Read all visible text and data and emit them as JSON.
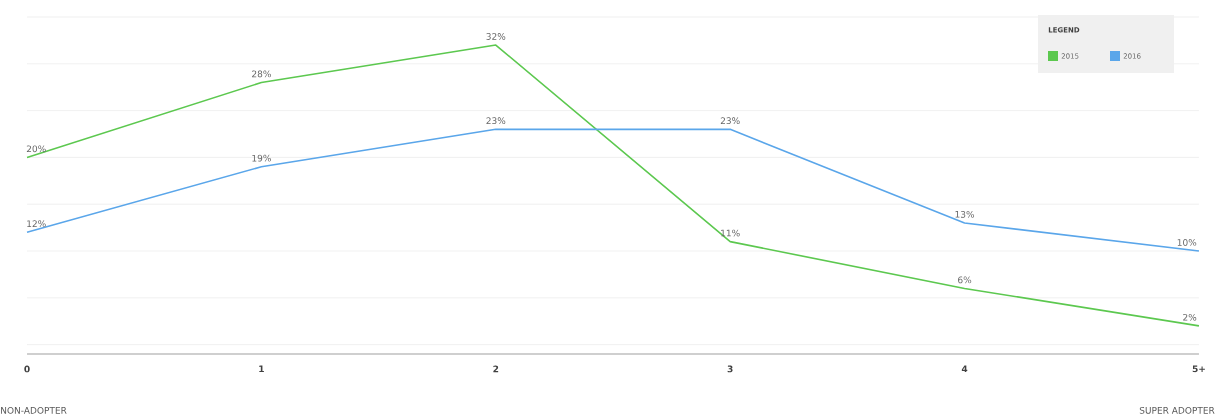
{
  "chart_data": {
    "type": "line",
    "categories": [
      "0",
      "1",
      "2",
      "3",
      "4",
      "5+"
    ],
    "series": [
      {
        "name": "2015",
        "color": "#5cc84f",
        "values": [
          20,
          28,
          32,
          11,
          6,
          2
        ],
        "value_labels": [
          "20%",
          "28%",
          "32%",
          "11%",
          "6%",
          "2%"
        ]
      },
      {
        "name": "2016",
        "color": "#5aa6ea",
        "values": [
          12,
          19,
          23,
          23,
          13,
          10
        ],
        "value_labels": [
          "12%",
          "19%",
          "23%",
          "23%",
          "13%",
          "10%"
        ]
      }
    ],
    "tick_labels": "x",
    "grid": "y",
    "legend": "top right",
    "legend_title": "LEGEND",
    "marker": "none",
    "line_style": "solid",
    "annotations": [
      "NON-ADOPTER",
      "SUPER ADOPTER"
    ]
  }
}
